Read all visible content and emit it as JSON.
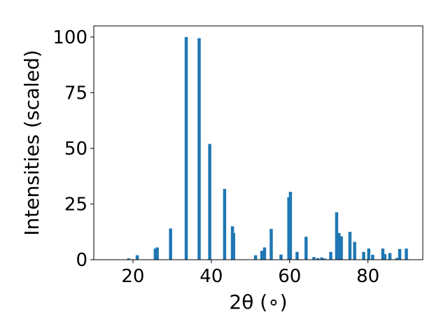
{
  "chart_data": {
    "type": "bar",
    "title": "",
    "xlabel": "2θ (∘)",
    "ylabel": "Intensities (scaled)",
    "xlim": [
      10,
      94
    ],
    "ylim": [
      0,
      105
    ],
    "xticks": [
      20,
      40,
      60,
      80
    ],
    "yticks": [
      0,
      25,
      50,
      75,
      100
    ],
    "grid": false,
    "legend": "none",
    "bar_color": "#1f77b4",
    "bar_width": 0.8,
    "x": [
      18.9,
      21.1,
      25.7,
      26.2,
      29.6,
      33.6,
      36.9,
      39.6,
      43.4,
      45.4,
      45.7,
      51.3,
      52.9,
      53.6,
      55.3,
      57.8,
      59.8,
      60.2,
      61.9,
      64.2,
      66.2,
      67.2,
      68.2,
      69.0,
      70.5,
      72.0,
      72.6,
      73.2,
      75.4,
      76.6,
      78.9,
      80.2,
      81.2,
      83.8,
      84.3,
      85.6,
      87.4,
      88.1,
      89.8
    ],
    "values": [
      0.6,
      2.0,
      5.0,
      5.5,
      14.0,
      100.0,
      99.5,
      52.0,
      31.8,
      15.0,
      12.0,
      2.0,
      4.0,
      5.5,
      13.8,
      2.3,
      28.0,
      30.5,
      3.5,
      10.3,
      1.2,
      0.7,
      1.0,
      0.5,
      3.5,
      21.3,
      12.0,
      10.5,
      12.5,
      8.0,
      3.5,
      5.0,
      2.2,
      5.0,
      2.5,
      3.0,
      0.8,
      4.8,
      5.0
    ]
  }
}
